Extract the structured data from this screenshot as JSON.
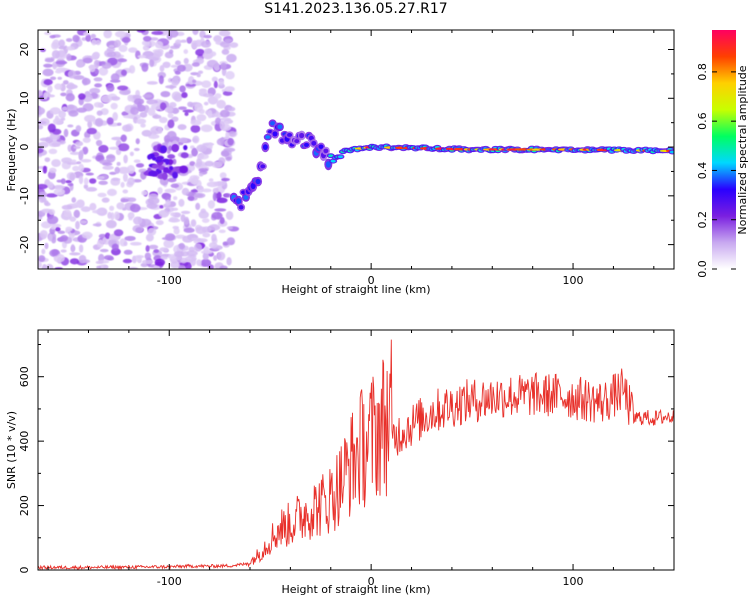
{
  "title": "S141.2023.136.05.27.R17",
  "chart_data": [
    {
      "type": "heatmap",
      "xlabel": "Height of straight line (km)",
      "ylabel": "Frequency (Hz)",
      "xlim": [
        -165,
        150
      ],
      "ylim": [
        -25,
        24
      ],
      "x_ticks": [
        -100,
        0,
        100
      ],
      "y_ticks": [
        -20,
        -10,
        0,
        10,
        20
      ],
      "colorbar": {
        "label": "Normalized spectral amplitude",
        "range": [
          0.0,
          0.97
        ],
        "ticks": [
          0.0,
          0.2,
          0.4,
          0.6,
          0.8
        ],
        "colormap": [
          "#ffffff",
          "#c8a8f0",
          "#7a1fe0",
          "#2a00ff",
          "#00d8ff",
          "#00ff60",
          "#c8ff00",
          "#ffd000",
          "#ff4000",
          "#ff0060"
        ]
      },
      "ridge_frequency": [
        {
          "x": -130,
          "y": -2
        },
        {
          "x": -100,
          "y": -4
        },
        {
          "x": -65,
          "y": -12
        },
        {
          "x": -55,
          "y": -5
        },
        {
          "x": -50,
          "y": 4
        },
        {
          "x": -40,
          "y": 2
        },
        {
          "x": -30,
          "y": 1
        },
        {
          "x": -20,
          "y": -3
        },
        {
          "x": -15,
          "y": -1
        },
        {
          "x": 0,
          "y": 0
        },
        {
          "x": 50,
          "y": -0.5
        },
        {
          "x": 100,
          "y": -0.5
        },
        {
          "x": 150,
          "y": -0.8
        }
      ]
    },
    {
      "type": "line",
      "xlabel": "Height of straight line (km)",
      "ylabel": "SNR (10 * v/v)",
      "xlim": [
        -165,
        150
      ],
      "ylim": [
        0,
        745
      ],
      "x_ticks": [
        -100,
        0,
        100
      ],
      "y_ticks": [
        0,
        200,
        400,
        600
      ],
      "series": [
        {
          "color": "#e8302a",
          "x": [
            -165,
            -140,
            -120,
            -100,
            -90,
            -80,
            -70,
            -60,
            -55,
            -50,
            -45,
            -40,
            -35,
            -30,
            -25,
            -20,
            -15,
            -10,
            -5,
            0,
            5,
            10,
            15,
            20,
            25,
            30,
            35,
            40,
            45,
            50,
            55,
            60,
            65,
            70,
            75,
            80,
            85,
            90,
            95,
            100,
            105,
            110,
            115,
            120,
            125,
            130,
            135,
            140,
            145,
            150
          ],
          "y": [
            8,
            8,
            9,
            10,
            12,
            12,
            13,
            20,
            45,
            80,
            110,
            120,
            140,
            160,
            170,
            190,
            230,
            280,
            320,
            345,
            380,
            405,
            430,
            450,
            470,
            490,
            500,
            510,
            520,
            525,
            530,
            535,
            540,
            540,
            540,
            545,
            540,
            545,
            540,
            535,
            530,
            525,
            520,
            540,
            560,
            470,
            475,
            470,
            475,
            475
          ]
        }
      ]
    }
  ]
}
